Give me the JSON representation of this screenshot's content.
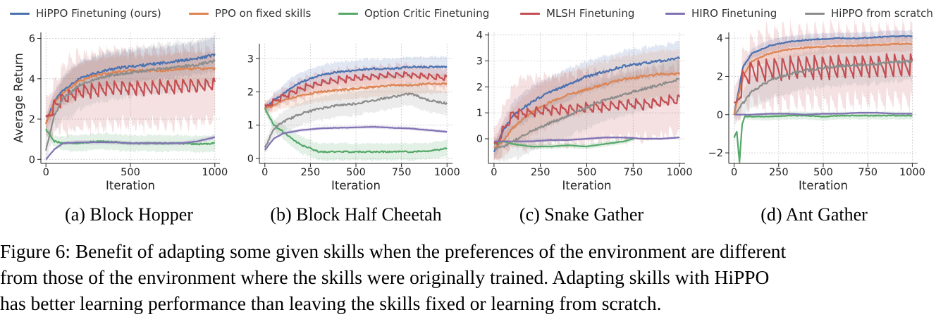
{
  "legend": [
    {
      "name": "HiPPO Finetuning (ours)",
      "color": "#4c72b0"
    },
    {
      "name": "PPO on fixed skills",
      "color": "#dd8452"
    },
    {
      "name": "Option Critic Finetuning",
      "color": "#55a868"
    },
    {
      "name": "MLSH Finetuning",
      "color": "#c44e52"
    },
    {
      "name": "HIRO Finetuning",
      "color": "#8172b3"
    },
    {
      "name": "HiPPO from scratch",
      "color": "#8c8c8c"
    }
  ],
  "chart_data": [
    {
      "type": "line",
      "subcaption": "(a) Block Hopper",
      "xlabel": "Iteration",
      "ylabel": "Average Return",
      "xlim": [
        -30,
        1030
      ],
      "ylim": [
        -0.2,
        6.3
      ],
      "xticks": [
        0,
        500,
        1000
      ],
      "yticks": [
        0,
        2,
        4,
        6
      ],
      "grid": true,
      "series": [
        {
          "name": "HiPPO Finetuning (ours)",
          "x": [
            0,
            50,
            100,
            200,
            300,
            400,
            500,
            600,
            700,
            800,
            900,
            1000
          ],
          "y": [
            1.8,
            2.9,
            3.4,
            4.0,
            4.3,
            4.5,
            4.6,
            4.7,
            4.8,
            4.9,
            5.0,
            5.2
          ],
          "band": 0.8
        },
        {
          "name": "PPO on fixed skills",
          "x": [
            0,
            50,
            100,
            200,
            300,
            400,
            500,
            600,
            700,
            800,
            900,
            1000
          ],
          "y": [
            1.8,
            2.8,
            3.3,
            3.9,
            4.2,
            4.3,
            4.4,
            4.4,
            4.4,
            4.5,
            4.5,
            4.5
          ],
          "band": 0.8
        },
        {
          "name": "Option Critic Finetuning",
          "x": [
            0,
            50,
            100,
            200,
            300,
            400,
            500,
            600,
            700,
            800,
            900,
            1000
          ],
          "y": [
            1.5,
            0.9,
            0.8,
            0.8,
            0.9,
            0.85,
            0.8,
            0.8,
            0.8,
            0.8,
            0.75,
            0.8
          ],
          "band": 0.4
        },
        {
          "name": "MLSH Finetuning",
          "x": [
            0,
            50,
            100,
            200,
            300,
            400,
            500,
            600,
            700,
            800,
            900,
            1000
          ],
          "y": [
            1.8,
            2.6,
            3.0,
            3.3,
            3.4,
            3.5,
            3.5,
            3.5,
            3.55,
            3.6,
            3.6,
            3.7
          ],
          "band": 1.8,
          "sawtooth": 0.45
        },
        {
          "name": "HIRO Finetuning",
          "x": [
            0,
            50,
            100,
            200,
            300,
            400,
            500,
            600,
            700,
            800,
            900,
            1000
          ],
          "y": [
            0.0,
            0.5,
            0.8,
            0.85,
            0.85,
            0.85,
            0.8,
            0.8,
            0.8,
            0.8,
            0.9,
            1.1
          ],
          "band": 0.1
        },
        {
          "name": "HiPPO from scratch",
          "x": [
            0,
            50,
            100,
            200,
            300,
            400,
            500,
            600,
            700,
            800,
            900,
            1000
          ],
          "y": [
            0.5,
            2.2,
            3.0,
            3.7,
            4.0,
            4.2,
            4.3,
            4.4,
            4.5,
            4.6,
            4.7,
            4.9
          ],
          "band": 1.2
        }
      ]
    },
    {
      "type": "line",
      "subcaption": "(b) Block Half Cheetah",
      "xlabel": "Iteration",
      "ylabel": "",
      "xlim": [
        -30,
        1030
      ],
      "ylim": [
        -0.15,
        3.45
      ],
      "xticks": [
        0,
        250,
        500,
        750,
        1000
      ],
      "yticks": [
        0,
        1,
        2,
        3
      ],
      "grid": true,
      "series": [
        {
          "name": "HiPPO Finetuning (ours)",
          "x": [
            0,
            50,
            100,
            200,
            300,
            400,
            500,
            600,
            700,
            800,
            900,
            1000
          ],
          "y": [
            1.5,
            1.75,
            1.95,
            2.3,
            2.5,
            2.6,
            2.65,
            2.7,
            2.7,
            2.75,
            2.75,
            2.75
          ],
          "band": 0.3
        },
        {
          "name": "PPO on fixed skills",
          "x": [
            0,
            50,
            100,
            200,
            300,
            400,
            500,
            600,
            700,
            800,
            900,
            1000
          ],
          "y": [
            1.5,
            1.6,
            1.75,
            1.9,
            2.0,
            2.05,
            2.1,
            2.15,
            2.2,
            2.2,
            2.25,
            2.25
          ],
          "band": 0.3
        },
        {
          "name": "Option Critic Finetuning",
          "x": [
            0,
            50,
            100,
            200,
            300,
            400,
            500,
            600,
            700,
            800,
            900,
            1000
          ],
          "y": [
            1.5,
            1.0,
            0.8,
            0.4,
            0.2,
            0.2,
            0.2,
            0.2,
            0.2,
            0.2,
            0.22,
            0.3
          ],
          "band": 0.25
        },
        {
          "name": "MLSH Finetuning",
          "x": [
            0,
            50,
            100,
            200,
            300,
            400,
            500,
            600,
            700,
            800,
            900,
            1000
          ],
          "y": [
            1.5,
            1.7,
            1.85,
            2.1,
            2.25,
            2.35,
            2.4,
            2.45,
            2.5,
            2.5,
            2.45,
            2.4
          ],
          "band": 0.3,
          "sawtooth": 0.12
        },
        {
          "name": "HIRO Finetuning",
          "x": [
            0,
            50,
            100,
            200,
            300,
            400,
            500,
            600,
            700,
            800,
            900,
            1000
          ],
          "y": [
            0.25,
            0.6,
            0.75,
            0.85,
            0.9,
            0.92,
            0.93,
            0.95,
            0.92,
            0.9,
            0.85,
            0.8
          ],
          "band": 0.05
        },
        {
          "name": "HiPPO from scratch",
          "x": [
            0,
            50,
            100,
            200,
            300,
            400,
            500,
            600,
            700,
            800,
            900,
            1000
          ],
          "y": [
            0.3,
            0.9,
            1.1,
            1.35,
            1.5,
            1.6,
            1.65,
            1.75,
            1.85,
            1.95,
            1.75,
            1.65
          ],
          "band": 0.35
        }
      ]
    },
    {
      "type": "line",
      "subcaption": "(c) Snake Gather",
      "xlabel": "Iteration",
      "ylabel": "",
      "xlim": [
        -30,
        1030
      ],
      "ylim": [
        -0.95,
        4.1
      ],
      "xticks": [
        0,
        250,
        500,
        750,
        1000
      ],
      "yticks": [
        0,
        1,
        2,
        3,
        4
      ],
      "grid": true,
      "series": [
        {
          "name": "HiPPO Finetuning (ours)",
          "x": [
            0,
            50,
            100,
            200,
            300,
            400,
            500,
            600,
            700,
            800,
            900,
            1000
          ],
          "y": [
            -0.5,
            0.3,
            0.9,
            1.4,
            1.8,
            2.1,
            2.4,
            2.6,
            2.8,
            2.9,
            3.0,
            3.1
          ],
          "band": 0.6
        },
        {
          "name": "PPO on fixed skills",
          "x": [
            0,
            50,
            100,
            200,
            300,
            400,
            500,
            600,
            700,
            800,
            900,
            1000
          ],
          "y": [
            -0.4,
            -0.1,
            0.4,
            1.0,
            1.4,
            1.7,
            1.9,
            2.1,
            2.3,
            2.4,
            2.5,
            2.5
          ],
          "band": 0.9
        },
        {
          "name": "Option Critic Finetuning",
          "x": [
            0,
            50,
            100,
            200,
            300,
            400,
            500,
            600,
            700,
            750
          ],
          "y": [
            -0.2,
            -0.1,
            -0.2,
            -0.3,
            -0.3,
            -0.25,
            -0.3,
            -0.2,
            -0.1,
            0.0
          ],
          "band": 0.1
        },
        {
          "name": "MLSH Finetuning",
          "x": [
            0,
            50,
            100,
            200,
            300,
            400,
            500,
            600,
            700,
            800,
            900,
            1000
          ],
          "y": [
            -0.4,
            0.3,
            0.9,
            1.0,
            1.1,
            1.1,
            1.2,
            1.2,
            1.3,
            1.3,
            1.4,
            1.5
          ],
          "band": 1.3,
          "sawtooth": 0.25
        },
        {
          "name": "HIRO Finetuning",
          "x": [
            0,
            100,
            200,
            300,
            400,
            500,
            600,
            700,
            800,
            900,
            1000
          ],
          "y": [
            -0.1,
            -0.1,
            -0.1,
            -0.05,
            -0.05,
            0.0,
            0.05,
            0.05,
            0.0,
            0.0,
            0.05
          ],
          "band": 0.05
        },
        {
          "name": "HiPPO from scratch",
          "x": [
            0,
            50,
            100,
            200,
            300,
            400,
            500,
            600,
            700,
            800,
            900,
            1000
          ],
          "y": [
            -0.4,
            -0.3,
            -0.1,
            0.3,
            0.6,
            0.9,
            1.2,
            1.5,
            1.7,
            1.9,
            2.1,
            2.3
          ],
          "band": 0.8
        }
      ]
    },
    {
      "type": "line",
      "subcaption": "(d) Ant Gather",
      "xlabel": "Iteration",
      "ylabel": "",
      "xlim": [
        -30,
        1030
      ],
      "ylim": [
        -2.55,
        4.3
      ],
      "xticks": [
        0,
        250,
        500,
        750,
        1000
      ],
      "yticks": [
        -2,
        0,
        2,
        4
      ],
      "grid": true,
      "series": [
        {
          "name": "HiPPO Finetuning (ours)",
          "x": [
            0,
            50,
            100,
            200,
            300,
            400,
            500,
            600,
            700,
            800,
            900,
            1000
          ],
          "y": [
            0.0,
            2.5,
            3.2,
            3.6,
            3.8,
            3.9,
            3.95,
            4.0,
            4.0,
            4.05,
            4.1,
            4.1
          ],
          "band": 0.3
        },
        {
          "name": "PPO on fixed skills",
          "x": [
            0,
            50,
            100,
            200,
            300,
            400,
            500,
            600,
            700,
            800,
            900,
            1000
          ],
          "y": [
            0.0,
            2.0,
            2.8,
            3.2,
            3.4,
            3.5,
            3.55,
            3.6,
            3.6,
            3.65,
            3.7,
            3.7
          ],
          "band": 0.4
        },
        {
          "name": "Option Critic Finetuning",
          "x": [
            0,
            15,
            30,
            45,
            60,
            100,
            200,
            300,
            400,
            500,
            600,
            700,
            800,
            900,
            1000
          ],
          "y": [
            -1.2,
            -0.9,
            -2.5,
            -0.5,
            -0.1,
            -0.1,
            -0.1,
            -0.05,
            -0.05,
            -0.1,
            -0.05,
            -0.05,
            -0.05,
            -0.05,
            -0.05
          ],
          "band": 0.2
        },
        {
          "name": "MLSH Finetuning",
          "x": [
            0,
            50,
            100,
            200,
            300,
            400,
            500,
            600,
            700,
            800,
            900,
            1000
          ],
          "y": [
            0.0,
            1.8,
            2.2,
            2.3,
            2.35,
            2.4,
            2.4,
            2.4,
            2.45,
            2.45,
            2.5,
            2.5
          ],
          "band": 1.8,
          "sawtooth": 0.8
        },
        {
          "name": "HIRO Finetuning",
          "x": [
            0,
            100,
            200,
            300,
            400,
            500,
            600,
            700,
            800,
            900,
            1000
          ],
          "y": [
            0.0,
            0.0,
            0.05,
            0.05,
            0.0,
            0.05,
            0.05,
            0.1,
            0.1,
            0.05,
            0.05
          ],
          "band": 0.05
        },
        {
          "name": "HiPPO from scratch",
          "x": [
            0,
            50,
            100,
            200,
            300,
            400,
            500,
            600,
            700,
            800,
            900,
            1000
          ],
          "y": [
            0.0,
            0.6,
            1.2,
            1.8,
            2.1,
            2.3,
            2.45,
            2.55,
            2.6,
            2.65,
            2.75,
            2.8
          ],
          "band": 1.0
        }
      ]
    }
  ],
  "figure_caption": [
    "Figure 6: Benefit of adapting some given skills when the preferences of the environment are different",
    "from those of the environment where the skills were originally trained. Adapting skills with HiPPO",
    "has better learning performance than leaving the skills fixed or learning from scratch."
  ]
}
